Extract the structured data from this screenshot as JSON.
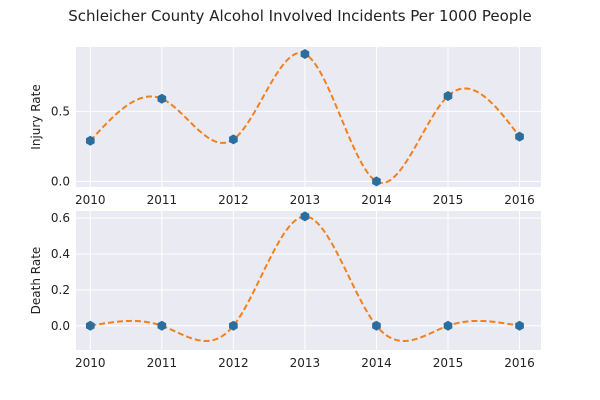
{
  "chart_data": [
    {
      "type": "scatter",
      "title": "Schleicher County Alcohol Involved Incidents Per 1000 People",
      "xlabel": "",
      "ylabel": "Injury Rate",
      "x": [
        2010,
        2011,
        2012,
        2013,
        2014,
        2015,
        2016
      ],
      "x_ticks": [
        2010,
        2011,
        2012,
        2013,
        2014,
        2015,
        2016
      ],
      "y_ticks": [
        "0.0",
        "0.5"
      ],
      "xlim": [
        2009.8,
        2016.3
      ],
      "ylim": [
        -0.04,
        0.96
      ],
      "grid": true,
      "series": [
        {
          "values": [
            0.29,
            0.59,
            0.3,
            0.91,
            0.0,
            0.61,
            0.32
          ],
          "color": "#2b6e9e",
          "style": "markers"
        },
        {
          "values": [
            0.29,
            0.59,
            0.3,
            0.91,
            0.0,
            0.61,
            0.32
          ],
          "color": "#f0811f",
          "style": "dashed-smooth-curve"
        }
      ]
    },
    {
      "type": "scatter",
      "xlabel": "",
      "ylabel": "Death Rate",
      "x": [
        2010,
        2011,
        2012,
        2013,
        2014,
        2015,
        2016
      ],
      "x_ticks": [
        2010,
        2011,
        2012,
        2013,
        2014,
        2015,
        2016
      ],
      "y_ticks": [
        "0.0",
        "0.2",
        "0.4",
        "0.6"
      ],
      "xlim": [
        2009.8,
        2016.3
      ],
      "ylim": [
        -0.135,
        0.64
      ],
      "grid": true,
      "series": [
        {
          "values": [
            0.0,
            0.0,
            0.0,
            0.61,
            0.0,
            0.0,
            0.0
          ],
          "color": "#2b6e9e",
          "style": "markers"
        },
        {
          "values": [
            0.0,
            0.0,
            0.0,
            0.61,
            0.0,
            0.0,
            0.0
          ],
          "color": "#f0811f",
          "style": "dashed-smooth-curve"
        }
      ]
    }
  ]
}
